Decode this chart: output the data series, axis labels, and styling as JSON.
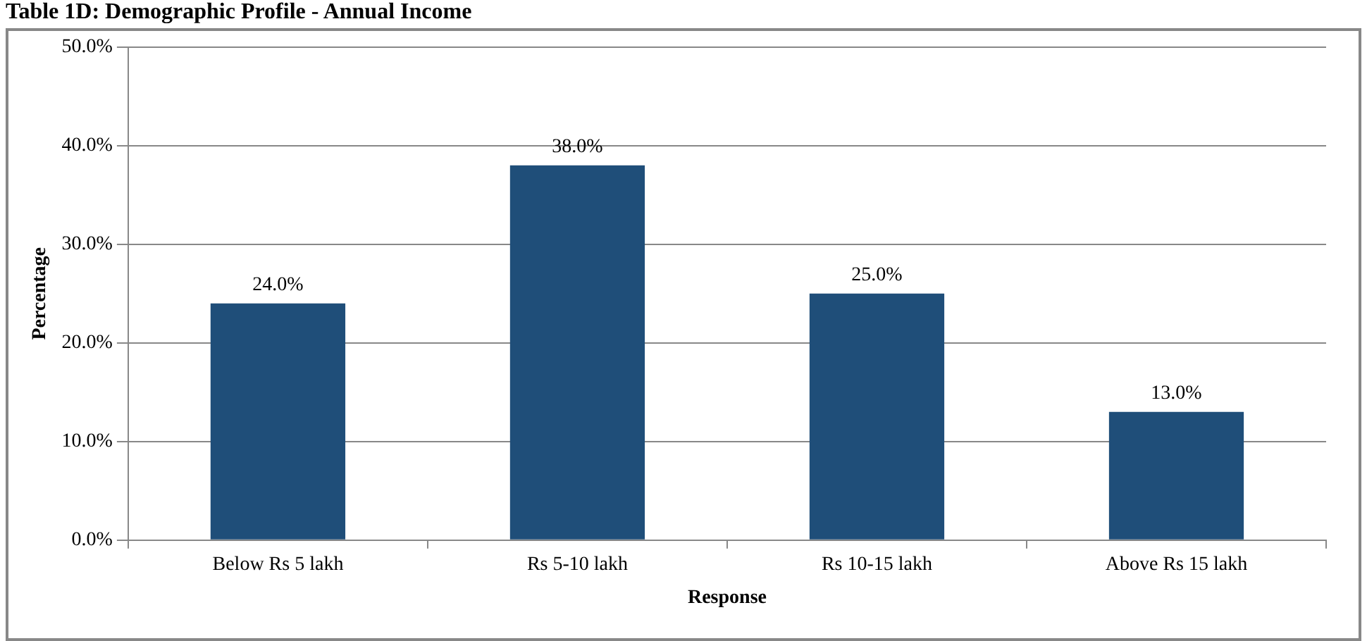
{
  "chart_data": {
    "type": "bar",
    "title": "Table 1D: Demographic Profile - Annual Income",
    "xlabel": "Response",
    "ylabel": "Percentage",
    "categories": [
      "Below Rs 5 lakh",
      "Rs 5-10 lakh",
      "Rs 10-15 lakh",
      "Above Rs 15 lakh"
    ],
    "values": [
      24,
      38,
      25,
      13
    ],
    "value_labels": [
      "24.0%",
      "38.0%",
      "25.0%",
      "13.0%"
    ],
    "color": "#1f4e79",
    "ylim": [
      0,
      50
    ],
    "yticks": [
      {
        "value": 0,
        "label": "0.0%"
      },
      {
        "value": 10,
        "label": "10.0%"
      },
      {
        "value": 20,
        "label": "20.0%"
      },
      {
        "value": 30,
        "label": "30.0%"
      },
      {
        "value": 40,
        "label": "40.0%"
      },
      {
        "value": 50,
        "label": "50.0%"
      }
    ],
    "grid": "y",
    "legend": false
  }
}
